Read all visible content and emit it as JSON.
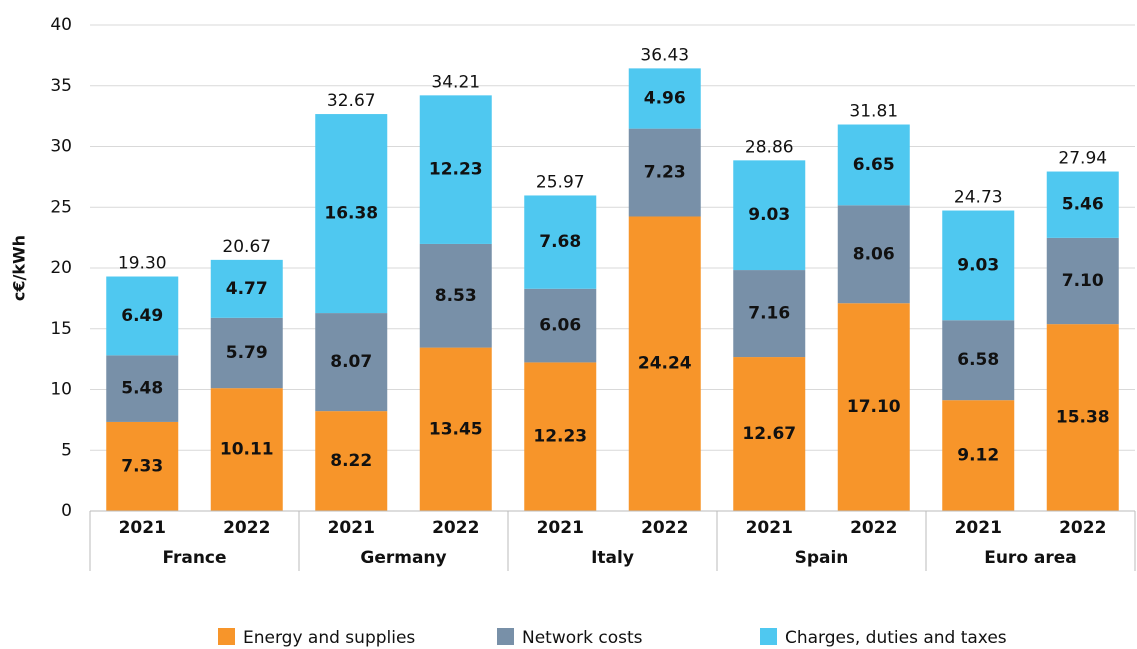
{
  "chart_data": {
    "type": "stacked_bar",
    "ylabel": "c€/kWh",
    "categories": [
      "2021",
      "2022",
      "2021",
      "2022",
      "2021",
      "2022",
      "2021",
      "2022",
      "2021",
      "2022"
    ],
    "groups": [
      "France",
      "Germany",
      "Italy",
      "Spain",
      "Euro area"
    ],
    "series": [
      {
        "name": "Energy and supplies",
        "color": "#f7952a",
        "values": [
          7.33,
          10.11,
          8.22,
          13.45,
          12.23,
          24.24,
          12.67,
          17.1,
          9.12,
          15.38
        ],
        "value_labels": [
          "7.33",
          "10.11",
          "8.22",
          "13.45",
          "12.23",
          "24.24",
          "12.67",
          "17.10",
          "9.12",
          "15.38"
        ]
      },
      {
        "name": "Network costs",
        "color": "#7890a8",
        "values": [
          5.48,
          5.79,
          8.07,
          8.53,
          6.06,
          7.23,
          7.16,
          8.06,
          6.58,
          7.1
        ],
        "value_labels": [
          "5.48",
          "5.79",
          "8.07",
          "8.53",
          "6.06",
          "7.23",
          "7.16",
          "8.06",
          "6.58",
          "7.10"
        ]
      },
      {
        "name": "Charges, duties and taxes",
        "color": "#4fc8f0",
        "values": [
          6.49,
          4.77,
          16.38,
          12.23,
          7.68,
          4.96,
          9.03,
          6.65,
          9.03,
          5.46
        ],
        "value_labels": [
          "6.49",
          "4.77",
          "16.38",
          "12.23",
          "7.68",
          "4.96",
          "9.03",
          "6.65",
          "9.03",
          "5.46"
        ]
      }
    ],
    "totals": {
      "values": [
        19.3,
        20.67,
        32.67,
        34.21,
        25.97,
        36.43,
        28.86,
        31.81,
        24.73,
        27.94
      ],
      "value_labels": [
        "19.30",
        "20.67",
        "32.67",
        "34.21",
        "25.97",
        "36.43",
        "28.86",
        "31.81",
        "24.73",
        "27.94"
      ]
    },
    "ylim": [
      0,
      40
    ],
    "yticks": [
      0,
      5,
      10,
      15,
      20,
      25,
      30,
      35,
      40
    ],
    "grid": true
  }
}
